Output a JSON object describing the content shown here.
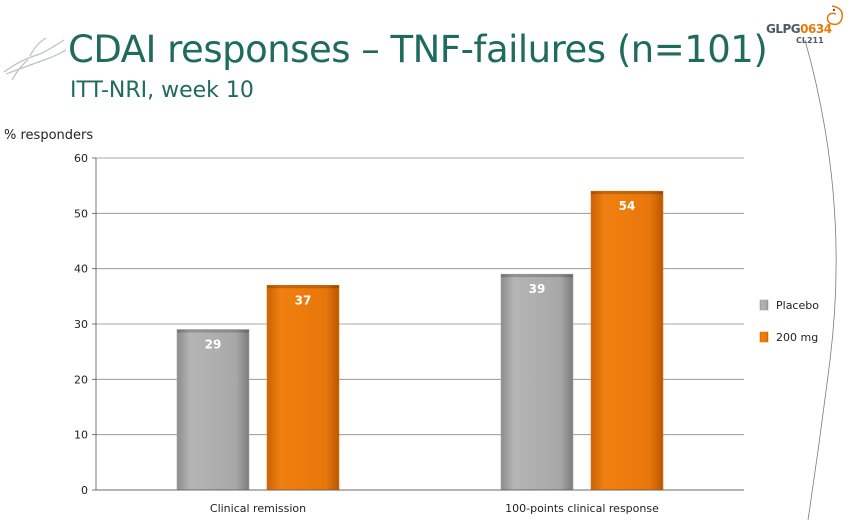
{
  "slide": {
    "title": "CDAI responses – TNF-failures (n=101)",
    "subtitle": "ITT-NRI, week 10"
  },
  "logo": {
    "main_prefix": "GLPG",
    "main_highlight": "0634",
    "sub": "CL211"
  },
  "colors": {
    "title": "#1f6b5e",
    "placebo": "#a6a6a6",
    "dose": "#e8760a"
  },
  "chart_data": {
    "type": "bar",
    "title": "",
    "xlabel": "",
    "ylabel": "% responders",
    "ylim": [
      0,
      60
    ],
    "yticks": [
      0,
      10,
      20,
      30,
      40,
      50,
      60
    ],
    "grid": true,
    "legend_position": "right",
    "categories": [
      "Clinical remission",
      "100-points clinical response"
    ],
    "series": [
      {
        "name": "Placebo",
        "values": [
          29,
          39
        ],
        "labels": [
          "29",
          "39"
        ],
        "color": "#a6a6a6"
      },
      {
        "name": "200 mg",
        "values": [
          37,
          54
        ],
        "labels": [
          "37",
          "54"
        ],
        "color": "#e8760a"
      }
    ]
  }
}
